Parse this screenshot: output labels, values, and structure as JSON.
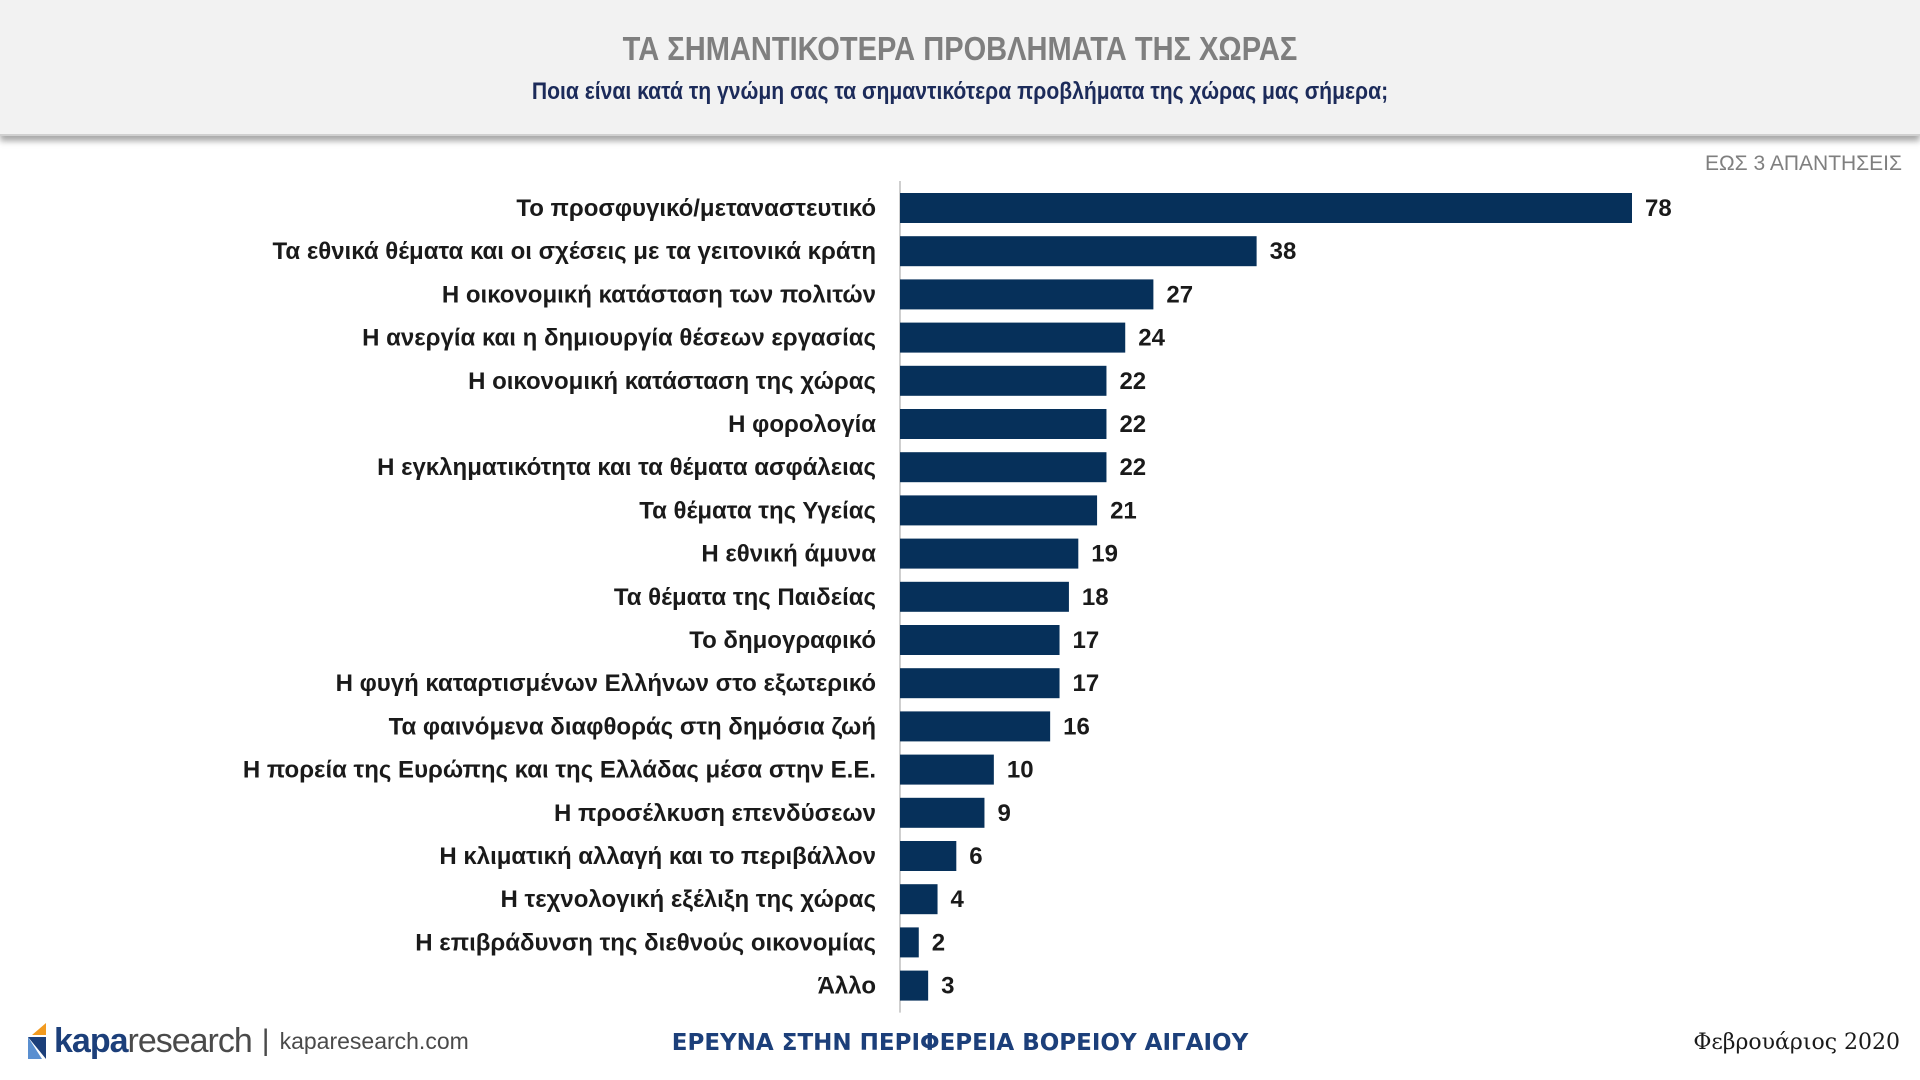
{
  "header": {
    "title": "ΤΑ ΣΗΜΑΝΤΙΚΟΤΕΡΑ ΠΡΟΒΛΗΜΑΤΑ ΤΗΣ ΧΩΡΑΣ",
    "subtitle": "Ποια είναι κατά τη γνώμη σας τα σημαντικότερα προβλήματα της χώρας μας σήμερα;"
  },
  "note": "ΕΩΣ 3 ΑΠΑΝΤΗΣΕΙΣ",
  "chart_data": {
    "type": "bar",
    "orientation": "horizontal",
    "title": "ΤΑ ΣΗΜΑΝΤΙΚΟΤΕΡΑ ΠΡΟΒΛΗΜΑΤΑ ΤΗΣ ΧΩΡΑΣ",
    "subtitle": "Ποια είναι κατά τη γνώμη σας τα σημαντικότερα προβλήματα της χώρας μας σήμερα;",
    "xlabel": "",
    "ylabel": "",
    "xlim": [
      0,
      78
    ],
    "grid": false,
    "bar_color": "#06305a",
    "categories": [
      "Το προσφυγικό/μεταναστευτικό",
      "Τα εθνικά θέματα και οι σχέσεις με τα γειτονικά κράτη",
      "Η οικονομική κατάσταση των πολιτών",
      "Η ανεργία και η δημιουργία θέσεων εργασίας",
      "Η οικονομική κατάσταση της χώρας",
      "Η φορολογία",
      "Η εγκληματικότητα και τα θέματα ασφάλειας",
      "Τα θέματα της Υγείας",
      "Η εθνική άμυνα",
      "Τα θέματα της Παιδείας",
      "Το δημογραφικό",
      "Η φυγή καταρτισμένων Ελλήνων στο εξωτερικό",
      "Τα φαινόμενα διαφθοράς στη δημόσια ζωή",
      "Η πορεία της Ευρώπης και της Ελλάδας μέσα στην Ε.Ε.",
      "Η προσέλκυση επενδύσεων",
      "Η κλιματική αλλαγή και το περιβάλλον",
      "Η τεχνολογική εξέλιξη της χώρας",
      "Η επιβράδυνση της διεθνούς οικονομίας",
      "Άλλο"
    ],
    "values": [
      78,
      38,
      27,
      24,
      22,
      22,
      22,
      21,
      19,
      18,
      17,
      17,
      16,
      10,
      9,
      6,
      4,
      2,
      3
    ]
  },
  "footer": {
    "logo_kapa": "kapa",
    "logo_research": "research",
    "logo_separator": "|",
    "logo_url": "kaparesearch.com",
    "survey": "ΕΡΕΥΝΑ ΣΤΗΝ ΠΕΡΙΦΕΡΕΙΑ ΒΟΡΕΙΟΥ ΑΙΓΑΙΟΥ",
    "date": "Φεβρουάριος 2020"
  }
}
